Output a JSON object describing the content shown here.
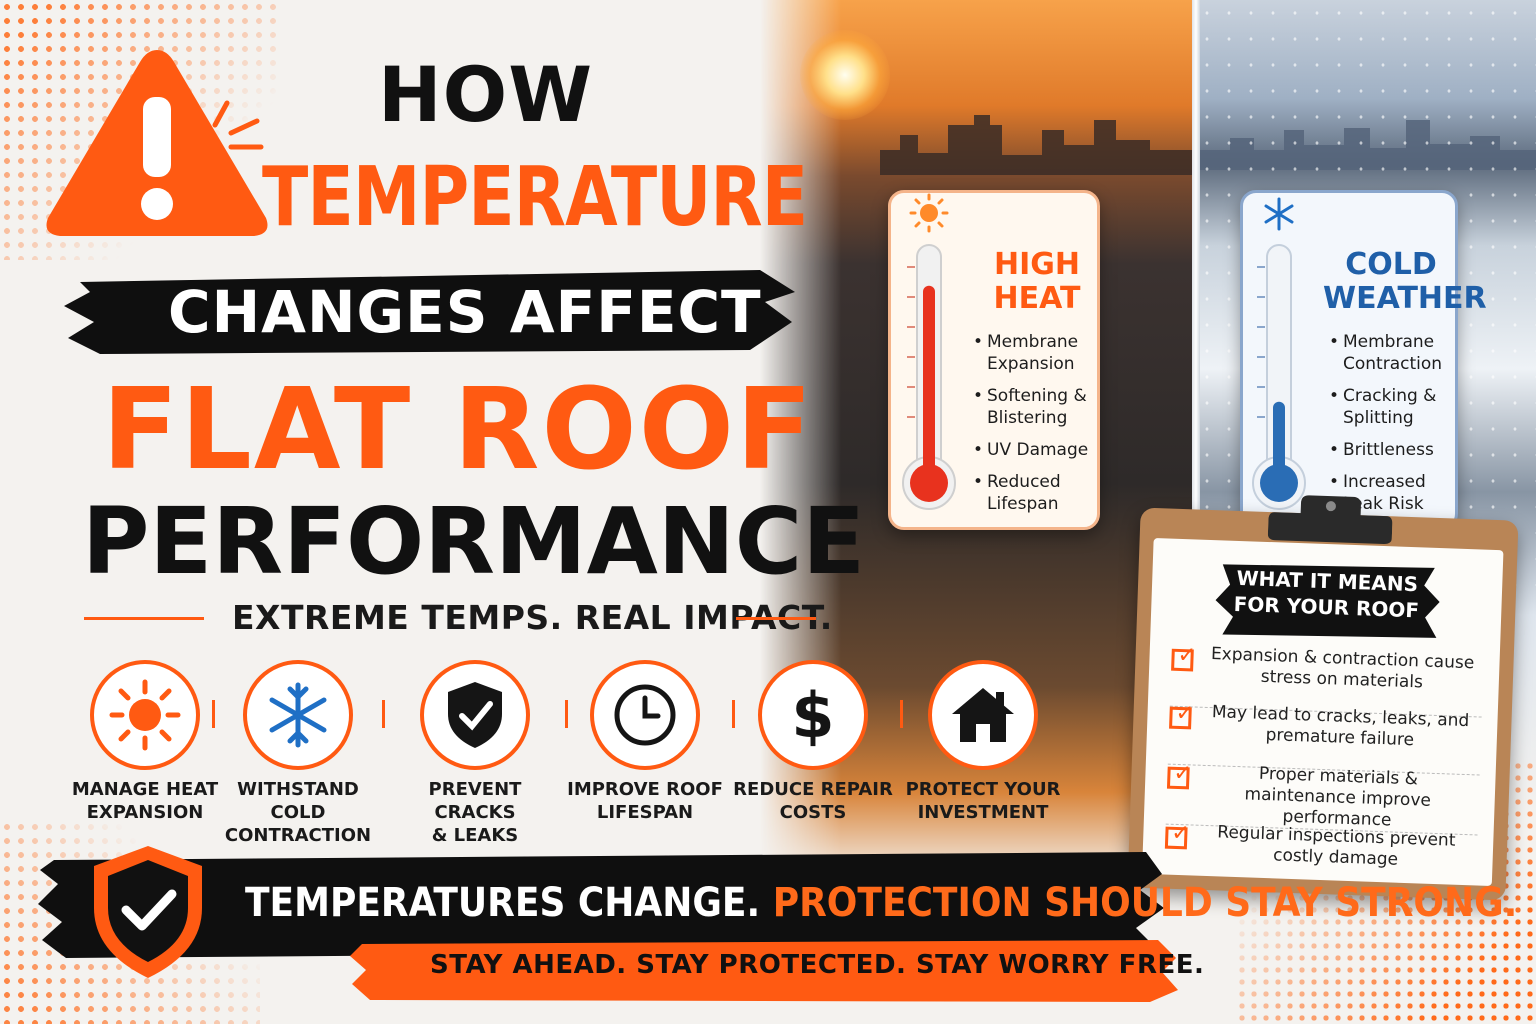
{
  "title": {
    "line1": "HOW",
    "line2": "TEMPERATURE",
    "line3": "CHANGES AFFECT",
    "line4": "FLAT ROOF",
    "line5": "PERFORMANCE",
    "subtitle": "EXTREME TEMPS. REAL IMPACT."
  },
  "benefits": [
    {
      "label1": "MANAGE HEAT",
      "label2": "EXPANSION",
      "icon": "sun-icon"
    },
    {
      "label1": "WITHSTAND",
      "label2": "COLD CONTRACTION",
      "icon": "snowflake-icon"
    },
    {
      "label1": "PREVENT CRACKS",
      "label2": "& LEAKS",
      "icon": "shield-check-icon"
    },
    {
      "label1": "IMPROVE ROOF",
      "label2": "LIFESPAN",
      "icon": "clock-icon"
    },
    {
      "label1": "REDUCE REPAIR",
      "label2": "COSTS",
      "icon": "dollar-icon"
    },
    {
      "label1": "PROTECT YOUR",
      "label2": "INVESTMENT",
      "icon": "house-icon"
    }
  ],
  "heat_card": {
    "title1": "HIGH",
    "title2": "HEAT",
    "items": [
      "Membrane Expansion",
      "Softening & Blistering",
      "UV Damage",
      "Reduced Lifespan"
    ],
    "level": 0.85
  },
  "cold_card": {
    "title1": "COLD",
    "title2": "WEATHER",
    "items": [
      "Membrane Contraction",
      "Cracking & Splitting",
      "Brittleness",
      "Increased Leak Risk"
    ],
    "level": 0.35
  },
  "clipboard": {
    "title1": "WHAT IT MEANS",
    "title2": "FOR YOUR ROOF",
    "items": [
      "Expansion & contraction cause stress on materials",
      "May lead to cracks, leaks, and premature failure",
      "Proper materials & maintenance improve performance",
      "Regular inspections prevent costly damage"
    ]
  },
  "banner": {
    "part1": "TEMPERATURES CHANGE.",
    "part2": "PROTECTION SHOULD STAY STRONG.",
    "tagline": "STAY AHEAD. STAY PROTECTED. STAY WORRY FREE."
  },
  "colors": {
    "accent": "#ff5a12",
    "dark": "#111111",
    "hot": "#e8321e",
    "cold": "#2a6db5"
  }
}
